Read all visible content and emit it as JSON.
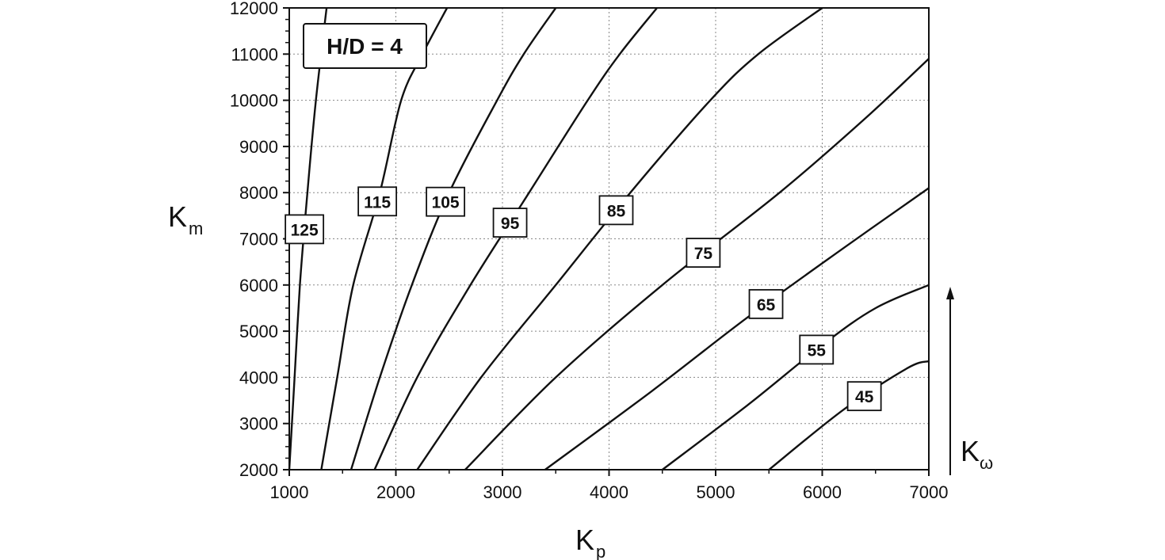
{
  "chart_data": {
    "type": "line",
    "annotation": "H/D = 4",
    "xlabel": {
      "main": "K",
      "sub": "p"
    },
    "ylabel": {
      "main": "K",
      "sub": "m"
    },
    "contour_variable": {
      "main": "K",
      "sub": "ω"
    },
    "xlim": [
      1000,
      7000
    ],
    "ylim": [
      2000,
      12000
    ],
    "grid": true,
    "xticks": [
      1000,
      2000,
      3000,
      4000,
      5000,
      6000,
      7000
    ],
    "yticks": [
      2000,
      3000,
      4000,
      5000,
      6000,
      7000,
      8000,
      9000,
      10000,
      11000,
      12000
    ],
    "series": [
      {
        "name": "125",
        "points": [
          [
            1000,
            2000
          ],
          [
            1050,
            4000
          ],
          [
            1100,
            6000
          ],
          [
            1170,
            8000
          ],
          [
            1250,
            10000
          ],
          [
            1350,
            12000
          ]
        ]
      },
      {
        "name": "115",
        "points": [
          [
            1300,
            2000
          ],
          [
            1450,
            4000
          ],
          [
            1600,
            6000
          ],
          [
            1850,
            8000
          ],
          [
            2050,
            10000
          ],
          [
            2250,
            11000
          ],
          [
            2480,
            12000
          ]
        ]
      },
      {
        "name": "105",
        "points": [
          [
            1580,
            2000
          ],
          [
            1850,
            4000
          ],
          [
            2150,
            6000
          ],
          [
            2500,
            8000
          ],
          [
            2950,
            10000
          ],
          [
            3200,
            11000
          ],
          [
            3500,
            12000
          ]
        ]
      },
      {
        "name": "95",
        "points": [
          [
            1800,
            2000
          ],
          [
            2200,
            4000
          ],
          [
            2700,
            6000
          ],
          [
            3250,
            8000
          ],
          [
            3800,
            10000
          ],
          [
            4100,
            11000
          ],
          [
            4450,
            12000
          ]
        ]
      },
      {
        "name": "85",
        "points": [
          [
            2200,
            2000
          ],
          [
            2800,
            4000
          ],
          [
            3500,
            6000
          ],
          [
            4200,
            8000
          ],
          [
            4950,
            10000
          ],
          [
            5400,
            11000
          ],
          [
            6000,
            12000
          ]
        ]
      },
      {
        "name": "75",
        "points": [
          [
            2650,
            2000
          ],
          [
            3500,
            4000
          ],
          [
            4500,
            6000
          ],
          [
            5600,
            8000
          ],
          [
            6400,
            9600
          ],
          [
            7000,
            10900
          ]
        ]
      },
      {
        "name": "65",
        "points": [
          [
            3400,
            2000
          ],
          [
            4400,
            3700
          ],
          [
            5300,
            5300
          ],
          [
            6200,
            6800
          ],
          [
            7000,
            8100
          ]
        ]
      },
      {
        "name": "55",
        "points": [
          [
            4500,
            2000
          ],
          [
            5300,
            3400
          ],
          [
            6000,
            4700
          ],
          [
            6500,
            5500
          ],
          [
            7000,
            6000
          ]
        ]
      },
      {
        "name": "45",
        "points": [
          [
            5500,
            2000
          ],
          [
            6200,
            3300
          ],
          [
            6800,
            4200
          ],
          [
            7000,
            4350
          ]
        ]
      }
    ]
  }
}
